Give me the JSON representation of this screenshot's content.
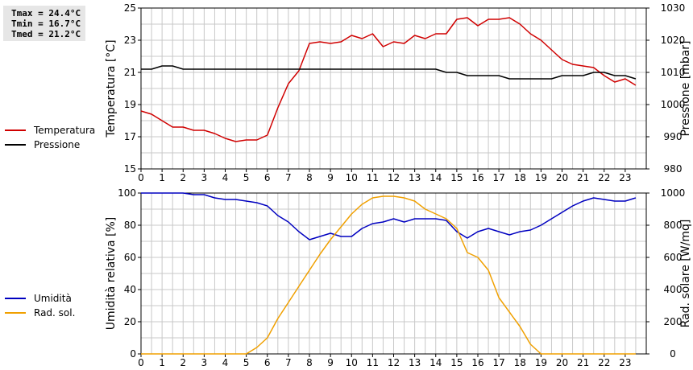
{
  "stats": {
    "tmax": "Tmax = 24.4°C",
    "tmin": "Tmin = 16.7°C",
    "tmed": "Tmed = 21.2°C"
  },
  "colors": {
    "temperature": "#d00000",
    "pressure": "#000000",
    "humidity": "#0000c0",
    "solar": "#f0a000",
    "grid": "#c8c8c8"
  },
  "chart_data": [
    {
      "type": "line",
      "ylabel": "Temperatura [°C]",
      "y2label": "Pressione [mbar]",
      "xlim": [
        0,
        24
      ],
      "ylim": [
        15,
        25
      ],
      "y2lim": [
        980,
        1030
      ],
      "xticks": [
        "0",
        "1",
        "2",
        "3",
        "4",
        "5",
        "6",
        "7",
        "8",
        "9",
        "10",
        "11",
        "12",
        "13",
        "14",
        "15",
        "16",
        "17",
        "18",
        "19",
        "20",
        "21",
        "22",
        "23"
      ],
      "yticks": [
        "15",
        "17",
        "19",
        "21",
        "23",
        "25"
      ],
      "y2ticks": [
        "980",
        "990",
        "1000",
        "1010",
        "1020",
        "1030"
      ],
      "grid": true,
      "legend": [
        "Temperatura",
        "Pressione"
      ],
      "series": [
        {
          "name": "Temperatura",
          "axis": "left",
          "x": [
            0,
            0.5,
            1,
            1.5,
            2,
            2.5,
            3,
            3.5,
            4,
            4.5,
            5,
            5.5,
            6,
            6.5,
            7,
            7.5,
            8,
            8.5,
            9,
            9.5,
            10,
            10.5,
            11,
            11.5,
            12,
            12.5,
            13,
            13.5,
            14,
            14.5,
            15,
            15.5,
            16,
            16.5,
            17,
            17.5,
            18,
            18.5,
            19,
            19.5,
            20,
            20.5,
            21,
            21.5,
            22,
            22.5,
            23,
            23.5
          ],
          "y": [
            18.6,
            18.4,
            18.0,
            17.6,
            17.6,
            17.4,
            17.4,
            17.2,
            16.9,
            16.7,
            16.8,
            16.8,
            17.1,
            18.8,
            20.3,
            21.1,
            22.8,
            22.9,
            22.8,
            22.9,
            23.3,
            23.1,
            23.4,
            22.6,
            22.9,
            22.8,
            23.3,
            23.1,
            23.4,
            23.4,
            24.3,
            24.4,
            23.9,
            24.3,
            24.3,
            24.4,
            24.0,
            23.4,
            23.0,
            22.4,
            21.8,
            21.5,
            21.4,
            21.3,
            20.8,
            20.4,
            20.6,
            20.2
          ]
        },
        {
          "name": "Pressione",
          "axis": "right",
          "x": [
            0,
            0.5,
            1,
            1.5,
            2,
            2.5,
            3,
            3.5,
            4,
            4.5,
            5,
            5.5,
            6,
            6.5,
            7,
            7.5,
            8,
            8.5,
            9,
            9.5,
            10,
            10.5,
            11,
            11.5,
            12,
            12.5,
            13,
            13.5,
            14,
            14.5,
            15,
            15.5,
            16,
            16.5,
            17,
            17.5,
            18,
            18.5,
            19,
            19.5,
            20,
            20.5,
            21,
            21.5,
            22,
            22.5,
            23,
            23.5
          ],
          "y": [
            1011,
            1011,
            1012,
            1012,
            1011,
            1011,
            1011,
            1011,
            1011,
            1011,
            1011,
            1011,
            1011,
            1011,
            1011,
            1011,
            1011,
            1011,
            1011,
            1011,
            1011,
            1011,
            1011,
            1011,
            1011,
            1011,
            1011,
            1011,
            1011,
            1010,
            1010,
            1009,
            1009,
            1009,
            1009,
            1008,
            1008,
            1008,
            1008,
            1008,
            1009,
            1009,
            1009,
            1010,
            1010,
            1009,
            1009,
            1008
          ]
        }
      ]
    },
    {
      "type": "line",
      "ylabel": "Umidità relativa [%]",
      "y2label": "Rad. solare [W/mq]",
      "xlim": [
        0,
        24
      ],
      "ylim": [
        0,
        100
      ],
      "y2lim": [
        0,
        1000
      ],
      "xticks": [
        "0",
        "1",
        "2",
        "3",
        "4",
        "5",
        "6",
        "7",
        "8",
        "9",
        "10",
        "11",
        "12",
        "13",
        "14",
        "15",
        "16",
        "17",
        "18",
        "19",
        "20",
        "21",
        "22",
        "23"
      ],
      "yticks": [
        "0",
        "20",
        "40",
        "60",
        "80",
        "100"
      ],
      "y2ticks": [
        "0",
        "200",
        "400",
        "600",
        "800",
        "1000"
      ],
      "grid": true,
      "legend": [
        "Umidità",
        "Rad. sol."
      ],
      "series": [
        {
          "name": "Umidità",
          "axis": "left",
          "x": [
            0,
            0.5,
            1,
            1.5,
            2,
            2.5,
            3,
            3.5,
            4,
            4.5,
            5,
            5.5,
            6,
            6.5,
            7,
            7.5,
            8,
            8.5,
            9,
            9.5,
            10,
            10.5,
            11,
            11.5,
            12,
            12.5,
            13,
            13.5,
            14,
            14.5,
            15,
            15.5,
            16,
            16.5,
            17,
            17.5,
            18,
            18.5,
            19,
            19.5,
            20,
            20.5,
            21,
            21.5,
            22,
            22.5,
            23,
            23.5
          ],
          "y": [
            100,
            100,
            100,
            100,
            100,
            99,
            99,
            97,
            96,
            96,
            95,
            94,
            92,
            86,
            82,
            76,
            71,
            73,
            75,
            73,
            73,
            78,
            81,
            82,
            84,
            82,
            84,
            84,
            84,
            83,
            76,
            72,
            76,
            78,
            76,
            74,
            76,
            77,
            80,
            84,
            88,
            92,
            95,
            97,
            96,
            95,
            95,
            97
          ]
        },
        {
          "name": "Rad. sol.",
          "axis": "right",
          "x": [
            0,
            0.5,
            1,
            1.5,
            2,
            2.5,
            3,
            3.5,
            4,
            4.5,
            5,
            5.5,
            6,
            6.5,
            7,
            7.5,
            8,
            8.5,
            9,
            9.5,
            10,
            10.5,
            11,
            11.5,
            12,
            12.5,
            13,
            13.5,
            14,
            14.5,
            15,
            15.5,
            16,
            16.5,
            17,
            17.5,
            18,
            18.5,
            19,
            19.5,
            20,
            20.5,
            21,
            21.5,
            22,
            22.5,
            23,
            23.5
          ],
          "y": [
            0,
            0,
            0,
            0,
            0,
            0,
            0,
            0,
            0,
            0,
            0,
            40,
            100,
            220,
            320,
            420,
            520,
            620,
            710,
            790,
            870,
            930,
            970,
            980,
            980,
            970,
            950,
            900,
            870,
            840,
            780,
            630,
            600,
            520,
            350,
            260,
            170,
            60,
            0,
            0,
            0,
            0,
            0,
            0,
            0,
            0,
            0,
            0
          ]
        }
      ]
    }
  ]
}
